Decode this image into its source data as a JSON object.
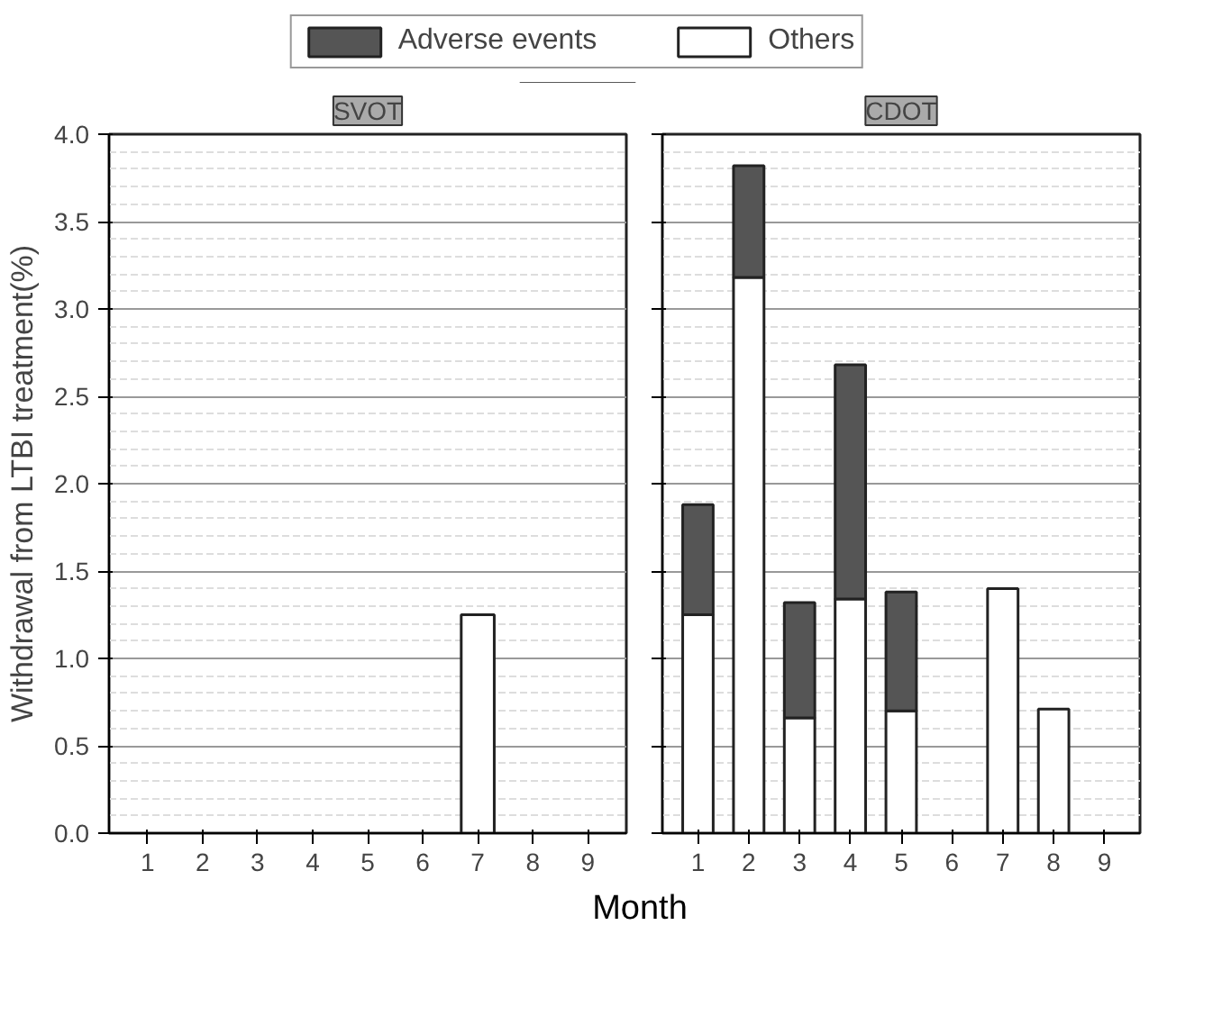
{
  "chart_data": [
    {
      "type": "bar",
      "title": "SVOT",
      "ylabel": "Withdrawal from LTBI treatment(%)",
      "xlabel": "Month",
      "categories": [
        "1",
        "2",
        "3",
        "4",
        "5",
        "6",
        "7",
        "8",
        "9"
      ],
      "stacked": true,
      "ylim": [
        0,
        4.0
      ],
      "yticks": [
        {
          "value": 0,
          "label": "0.0"
        },
        0.5,
        {
          "value": 1,
          "label": "1.0"
        },
        1.5,
        {
          "value": 2,
          "label": "2.0"
        },
        2.5,
        {
          "value": 3,
          "label": "3.0"
        },
        3.5,
        {
          "value": 4,
          "label": "4.0"
        }
      ],
      "grid": "y",
      "legend": "top",
      "series": [
        {
          "name": "Others",
          "color": "#ffffff",
          "values": [
            null,
            null,
            null,
            null,
            null,
            null,
            1.25,
            null,
            null
          ]
        },
        {
          "name": "Adverse events",
          "color": "#555555",
          "values": [
            null,
            null,
            null,
            null,
            null,
            null,
            null,
            null,
            null
          ]
        }
      ]
    },
    {
      "type": "bar",
      "title": "CDOT",
      "categories": [
        "1",
        "2",
        "3",
        "4",
        "5",
        "6",
        "7",
        "8",
        "9"
      ],
      "stacked": true,
      "ylim": [
        0,
        4.0
      ],
      "yticks": [
        0,
        0.5,
        1,
        1.5,
        2,
        2.5,
        3,
        3.5,
        4
      ],
      "grid": "y",
      "tick_labels": "x",
      "series": [
        {
          "color": "#ffffff",
          "values": [
            1.25,
            3.18,
            0.66,
            1.34,
            0.7,
            null,
            1.4,
            0.71,
            null
          ]
        },
        {
          "color": "#555555",
          "values": [
            0.63,
            0.64,
            0.66,
            1.34,
            0.68,
            null,
            null,
            null,
            null
          ]
        }
      ]
    }
  ]
}
